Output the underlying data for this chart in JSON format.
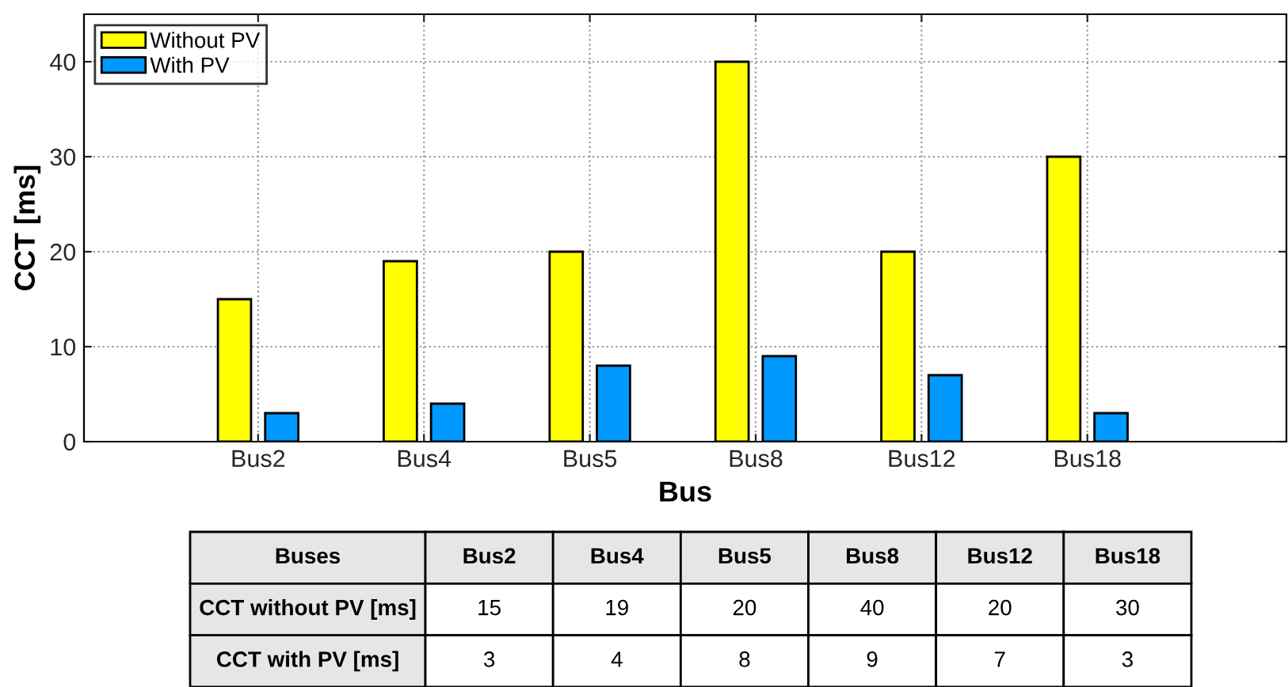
{
  "chart_data": [
    {
      "type": "bar",
      "xlabel": "Bus",
      "ylabel": "CCT [ms]",
      "categories": [
        "Bus2",
        "Bus4",
        "Bus5",
        "Bus8",
        "Bus12",
        "Bus18"
      ],
      "series": [
        {
          "name": "Without PV",
          "color": "#ffff00",
          "values": [
            15,
            19,
            20,
            40,
            20,
            30
          ]
        },
        {
          "name": "With PV",
          "color": "#0099ff",
          "values": [
            3,
            4,
            8,
            9,
            7,
            3
          ]
        }
      ],
      "ylim": [
        0,
        45
      ],
      "yticks": [
        0,
        10,
        20,
        30,
        40
      ],
      "grid": true,
      "legend": "top left"
    },
    {
      "type": "other",
      "title": "Buses",
      "categories": [
        "Bus2",
        "Bus4",
        "Bus5",
        "Bus8",
        "Bus12",
        "Bus18"
      ],
      "series": [
        {
          "name": "CCT without PV [ms]",
          "values": [
            15,
            19,
            20,
            40,
            20,
            30
          ]
        },
        {
          "name": "CCT with PV [ms]",
          "values": [
            3,
            4,
            8,
            9,
            7,
            3
          ]
        }
      ],
      "data_labels": true
    }
  ]
}
